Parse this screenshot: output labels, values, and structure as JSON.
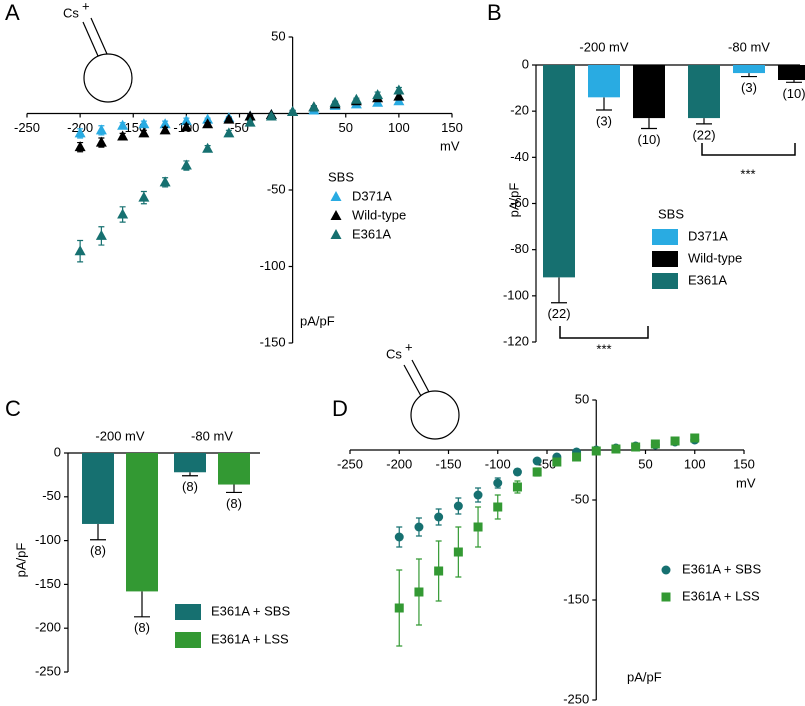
{
  "chart_data": [
    {
      "type": "scatter",
      "panel": "A",
      "ion": "Cs",
      "ion_charge": "+",
      "xlabel": "mV",
      "ylabel": "pA/pF",
      "legend_title": "SBS",
      "legend": "lower-right",
      "x": [
        -200,
        -180,
        -160,
        -140,
        -120,
        -100,
        -80,
        -60,
        -40,
        -20,
        0,
        20,
        40,
        60,
        80,
        100
      ],
      "xlim": [
        -250,
        150
      ],
      "xticks": [
        -250,
        -200,
        -150,
        -100,
        -50,
        50,
        100,
        150
      ],
      "ylim": [
        -150,
        50
      ],
      "yticks": [
        50,
        -50,
        -100,
        -150
      ],
      "series": [
        {
          "name": "D371A",
          "color": "#29abe2",
          "marker": "triangle",
          "values": [
            -13,
            -11,
            -8,
            -7,
            -7,
            -5,
            -4,
            -3,
            -2,
            -1,
            1,
            2,
            5,
            6,
            7,
            8
          ],
          "errors": [
            3,
            3,
            2,
            2,
            2,
            2,
            1,
            1,
            1,
            1,
            1,
            1,
            1,
            1,
            1,
            1
          ]
        },
        {
          "name": "Wild-type",
          "color": "#000000",
          "marker": "triangle",
          "values": [
            -22,
            -19,
            -15,
            -13,
            -11,
            -9,
            -7,
            -4,
            -2,
            -1,
            1,
            4,
            6,
            8,
            10,
            11
          ],
          "errors": [
            3,
            3,
            2,
            2,
            2,
            2,
            1,
            1,
            1,
            1,
            1,
            1,
            1,
            1,
            1,
            2
          ]
        },
        {
          "name": "E361A",
          "color": "#167070",
          "marker": "triangle",
          "values": [
            -90,
            -80,
            -66,
            -55,
            -45,
            -34,
            -23,
            -13,
            -6,
            -2,
            1,
            4,
            7,
            9,
            12,
            15
          ],
          "errors": [
            7,
            6,
            5,
            4,
            3,
            3,
            2,
            2,
            1,
            1,
            1,
            1,
            1,
            1,
            2,
            2
          ]
        }
      ]
    },
    {
      "type": "bar",
      "panel": "B",
      "ylabel": "pA/pF",
      "legend_title": "SBS",
      "legend": "center-right",
      "categories": [
        "-200 mV",
        "-80 mV"
      ],
      "ylim": [
        -120,
        0
      ],
      "yticks": [
        0,
        -20,
        -40,
        -60,
        -80,
        -100,
        -120
      ],
      "series": [
        {
          "name": "D371A",
          "color": "#29abe2",
          "values": [
            -14,
            -3.5
          ],
          "errors": [
            5.5,
            1.5
          ],
          "n_labels": [
            "(3)",
            "(3)"
          ]
        },
        {
          "name": "Wild-type",
          "color": "#000000",
          "values": [
            -23,
            -6.5
          ],
          "errors": [
            4.5,
            1
          ],
          "n_labels": [
            "(10)",
            "(10)"
          ]
        },
        {
          "name": "E361A",
          "color": "#167070",
          "values": [
            -92,
            -23
          ],
          "errors": [
            11,
            2.5
          ],
          "n_labels": [
            "(22)",
            "(22)"
          ]
        }
      ],
      "significance": [
        "***",
        "***"
      ]
    },
    {
      "type": "bar",
      "panel": "C",
      "ylabel": "pA/pF",
      "legend": "lower-right",
      "categories": [
        "-200 mV",
        "-80 mV"
      ],
      "ylim": [
        -250,
        0
      ],
      "yticks": [
        0,
        -50,
        -100,
        -150,
        -200,
        -250
      ],
      "series": [
        {
          "name": "E361A + SBS",
          "color": "#167070",
          "values": [
            -81,
            -22
          ],
          "errors": [
            18,
            4
          ],
          "n_labels": [
            "(8)",
            "(8)"
          ]
        },
        {
          "name": "E361A + LSS",
          "color": "#339933",
          "values": [
            -158,
            -36
          ],
          "errors": [
            29,
            9
          ],
          "n_labels": [
            "(8)",
            "(8)"
          ]
        }
      ]
    },
    {
      "type": "scatter",
      "panel": "D",
      "ion": "Cs",
      "ion_charge": "+",
      "xlabel": "mV",
      "ylabel": "pA/pF",
      "legend": "lower-right",
      "x": [
        -200,
        -180,
        -160,
        -140,
        -120,
        -100,
        -80,
        -60,
        -40,
        -20,
        0,
        20,
        40,
        60,
        80,
        100
      ],
      "xlim": [
        -250,
        150
      ],
      "xticks": [
        -250,
        -200,
        -150,
        -100,
        -50,
        50,
        100,
        150
      ],
      "ylim": [
        -250,
        50
      ],
      "yticks": [
        50,
        -50,
        -150,
        -250
      ],
      "series": [
        {
          "name": "E361A + SBS",
          "color": "#167070",
          "marker": "circle",
          "values": [
            -87,
            -77,
            -67,
            -56,
            -45,
            -33,
            -22,
            -11,
            -7,
            -2,
            0,
            2,
            4,
            5,
            8,
            10
          ],
          "errors": [
            10,
            9,
            8,
            8,
            7,
            5,
            3,
            2,
            2,
            1,
            1,
            1,
            1,
            1,
            1,
            1
          ]
        },
        {
          "name": "E361A + LSS",
          "color": "#339933",
          "marker": "square",
          "values": [
            -158,
            -142,
            -121,
            -102,
            -77,
            -57,
            -37,
            -22,
            -12,
            -7,
            -1,
            1,
            3,
            6,
            9,
            12
          ],
          "errors": [
            38,
            33,
            30,
            25,
            20,
            12,
            6,
            4,
            3,
            2,
            1,
            1,
            1,
            1,
            1,
            1
          ]
        }
      ]
    }
  ]
}
